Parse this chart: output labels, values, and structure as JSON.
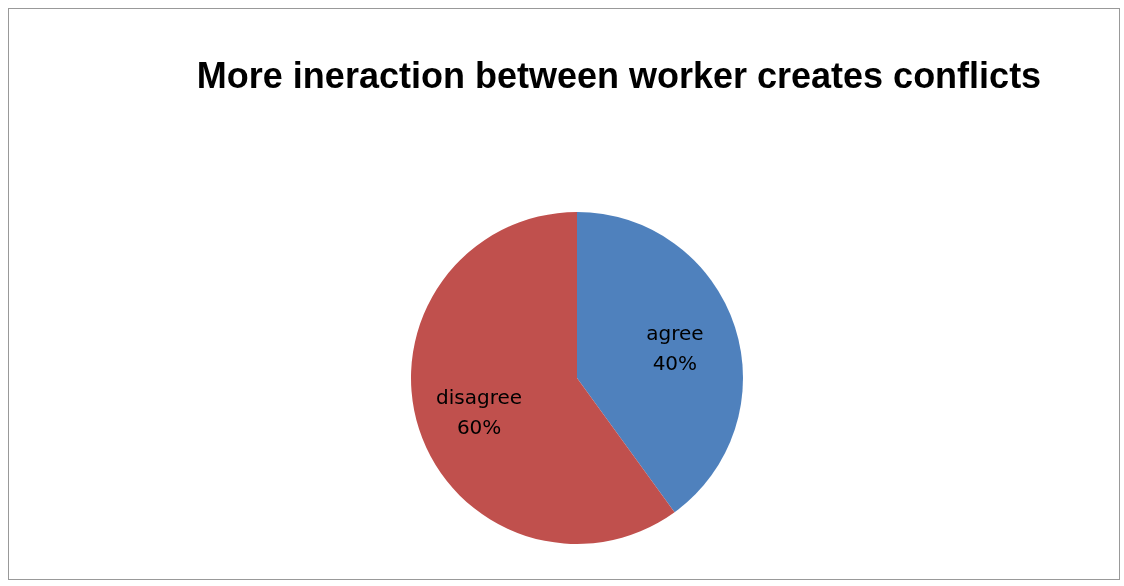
{
  "chart_data": {
    "type": "pie",
    "title": "More ineraction between worker creates conflicts",
    "categories": [
      "agree",
      "disagree"
    ],
    "values": [
      40,
      60
    ],
    "value_labels": [
      "40%",
      "60%"
    ],
    "colors": [
      "#4f81bd",
      "#c0504d"
    ]
  }
}
